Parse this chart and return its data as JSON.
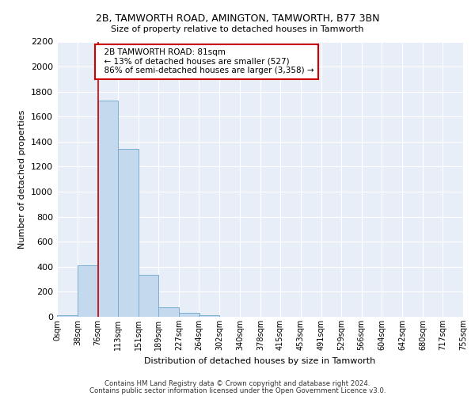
{
  "title": "2B, TAMWORTH ROAD, AMINGTON, TAMWORTH, B77 3BN",
  "subtitle": "Size of property relative to detached houses in Tamworth",
  "xlabel": "Distribution of detached houses by size in Tamworth",
  "ylabel": "Number of detached properties",
  "bar_color": "#c5d9ee",
  "bar_edge_color": "#7aaed0",
  "background_color": "#e8eef8",
  "grid_color": "#ffffff",
  "bin_edges": [
    0,
    38,
    76,
    113,
    151,
    189,
    227,
    264,
    302,
    340,
    378,
    415,
    453,
    491,
    529,
    566,
    604,
    642,
    680,
    717,
    755
  ],
  "bar_heights": [
    15,
    410,
    1730,
    1340,
    335,
    75,
    30,
    15,
    0,
    0,
    0,
    0,
    0,
    0,
    0,
    0,
    0,
    0,
    0,
    0
  ],
  "tick_labels": [
    "0sqm",
    "38sqm",
    "76sqm",
    "113sqm",
    "151sqm",
    "189sqm",
    "227sqm",
    "264sqm",
    "302sqm",
    "340sqm",
    "378sqm",
    "415sqm",
    "453sqm",
    "491sqm",
    "529sqm",
    "566sqm",
    "604sqm",
    "642sqm",
    "680sqm",
    "717sqm",
    "755sqm"
  ],
  "property_line_x": 76,
  "annotation_text": "  2B TAMWORTH ROAD: 81sqm\n  ← 13% of detached houses are smaller (527)\n  86% of semi-detached houses are larger (3,358) →",
  "annotation_box_color": "#ffffff",
  "annotation_box_edge": "#cc0000",
  "ylim": [
    0,
    2200
  ],
  "yticks": [
    0,
    200,
    400,
    600,
    800,
    1000,
    1200,
    1400,
    1600,
    1800,
    2000,
    2200
  ],
  "footer_line1": "Contains HM Land Registry data © Crown copyright and database right 2024.",
  "footer_line2": "Contains public sector information licensed under the Open Government Licence v3.0."
}
